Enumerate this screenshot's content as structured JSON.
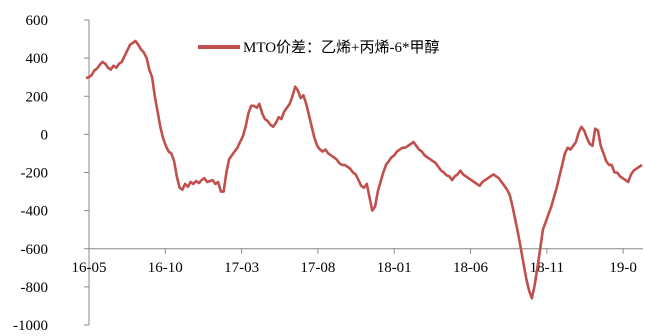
{
  "chart_data": {
    "type": "line",
    "title": "",
    "xlabel": "",
    "ylabel": "",
    "ylim": [
      -1000,
      600
    ],
    "y_ticks": [
      600,
      400,
      200,
      0,
      -200,
      -400,
      -600,
      -800,
      -1000
    ],
    "x_range_months": [
      "16-05",
      "19-04"
    ],
    "x_ticks": [
      "16-05",
      "16-10",
      "17-03",
      "17-08",
      "18-01",
      "18-06",
      "18-11",
      "19-0"
    ],
    "legend_position": "top-center",
    "grid": false,
    "series": [
      {
        "name": "MTO价差：乙烯+丙烯-6*甲醇",
        "color": "#c0504d",
        "points": [
          [
            "16-05",
            295
          ],
          [
            "16-05b",
            320
          ],
          [
            "16-06",
            345
          ],
          [
            "16-06b",
            380
          ],
          [
            "16-07",
            350
          ],
          [
            "16-07b",
            370
          ],
          [
            "16-08",
            430
          ],
          [
            "16-08b",
            480
          ],
          [
            "16-09",
            485
          ],
          [
            "16-09b",
            430
          ],
          [
            "16-10a",
            300
          ],
          [
            "16-10b",
            40
          ],
          [
            "16-10c",
            -100
          ],
          [
            "16-10d",
            -240
          ],
          [
            "16-10e",
            -280
          ],
          [
            "16-11",
            -260
          ],
          [
            "16-12",
            -245
          ],
          [
            "17-01",
            -240
          ],
          [
            "17-02",
            -250
          ],
          [
            "17-02b",
            -300
          ],
          [
            "17-03",
            -130
          ],
          [
            "17-04",
            -30
          ],
          [
            "17-04b",
            130
          ],
          [
            "17-05",
            155
          ],
          [
            "17-05b",
            80
          ],
          [
            "17-06",
            60
          ],
          [
            "17-07",
            120
          ],
          [
            "17-07b",
            240
          ],
          [
            "17-08",
            205
          ],
          [
            "17-08b",
            40
          ],
          [
            "17-09",
            -80
          ],
          [
            "17-10",
            -100
          ],
          [
            "17-11",
            -160
          ],
          [
            "17-11b",
            -210
          ],
          [
            "17-12",
            -280
          ],
          [
            "17-12b",
            -400
          ],
          [
            "18-01",
            -250
          ],
          [
            "18-01b",
            -120
          ],
          [
            "18-02",
            -90
          ],
          [
            "18-02b",
            -40
          ],
          [
            "18-03",
            -80
          ],
          [
            "18-04",
            -130
          ],
          [
            "18-05",
            -190
          ],
          [
            "18-05b",
            -220
          ],
          [
            "18-06",
            -220
          ],
          [
            "18-07",
            -250
          ],
          [
            "18-07b",
            -280
          ],
          [
            "18-08",
            -230
          ],
          [
            "18-09",
            -220
          ],
          [
            "18-09b",
            -270
          ],
          [
            "18-10",
            -450
          ],
          [
            "18-10b",
            -700
          ],
          [
            "18-11",
            -860
          ],
          [
            "18-11b",
            -600
          ],
          [
            "18-11c",
            -420
          ],
          [
            "18-12",
            -280
          ],
          [
            "18-12b",
            -150
          ],
          [
            "19-01",
            -80
          ],
          [
            "19-01b",
            20
          ],
          [
            "19-02",
            -60
          ],
          [
            "19-02b",
            10
          ],
          [
            "19-03",
            -150
          ],
          [
            "19-03b",
            -210
          ],
          [
            "19-04",
            -250
          ],
          [
            "19-04b",
            -170
          ]
        ],
        "values": [
          295,
          300,
          310,
          335,
          345,
          365,
          380,
          370,
          350,
          340,
          360,
          350,
          370,
          380,
          410,
          440,
          470,
          480,
          490,
          470,
          445,
          430,
          400,
          340,
          300,
          200,
          120,
          40,
          -20,
          -60,
          -90,
          -100,
          -140,
          -220,
          -280,
          -290,
          -260,
          -275,
          -250,
          -260,
          -245,
          -255,
          -240,
          -230,
          -250,
          -245,
          -240,
          -260,
          -250,
          -300,
          -300,
          -200,
          -130,
          -110,
          -90,
          -70,
          -40,
          -10,
          40,
          110,
          150,
          150,
          140,
          160,
          110,
          80,
          70,
          50,
          40,
          60,
          90,
          80,
          120,
          140,
          160,
          200,
          250,
          230,
          190,
          205,
          160,
          100,
          40,
          -20,
          -60,
          -80,
          -90,
          -80,
          -100,
          -110,
          -120,
          -130,
          -150,
          -160,
          -160,
          -170,
          -180,
          -200,
          -210,
          -240,
          -270,
          -280,
          -260,
          -330,
          -400,
          -380,
          -300,
          -250,
          -200,
          -160,
          -140,
          -120,
          -110,
          -90,
          -80,
          -70,
          -70,
          -60,
          -50,
          -40,
          -60,
          -80,
          -90,
          -110,
          -120,
          -130,
          -140,
          -150,
          -170,
          -190,
          -200,
          -215,
          -220,
          -240,
          -220,
          -210,
          -190,
          -210,
          -220,
          -230,
          -240,
          -250,
          -260,
          -270,
          -250,
          -240,
          -230,
          -220,
          -210,
          -220,
          -230,
          -250,
          -270,
          -290,
          -320,
          -380,
          -450,
          -520,
          -600,
          -680,
          -760,
          -820,
          -860,
          -790,
          -700,
          -600,
          -500,
          -460,
          -420,
          -380,
          -330,
          -280,
          -220,
          -160,
          -100,
          -70,
          -80,
          -60,
          -40,
          10,
          40,
          20,
          -20,
          -50,
          -60,
          30,
          20,
          -60,
          -100,
          -140,
          -160,
          -160,
          -200,
          -200,
          -220,
          -230,
          -240,
          -250,
          -210,
          -190,
          -180,
          -170,
          -160
        ]
      }
    ]
  }
}
